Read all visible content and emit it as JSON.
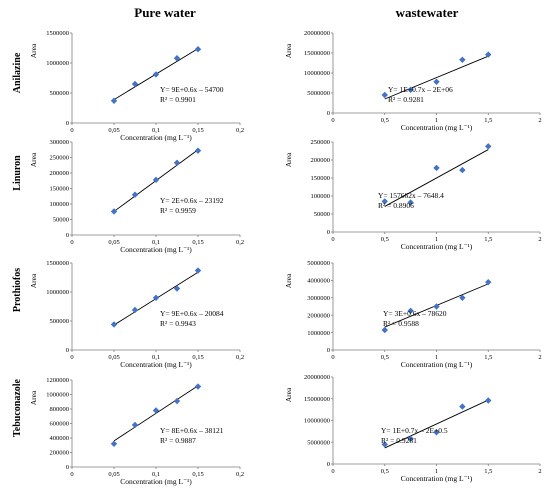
{
  "column_titles": [
    "Pure water",
    "wastewater"
  ],
  "row_titles": [
    "Anilazine",
    "Linuron",
    "Prothiofos",
    "Tebuconazole"
  ],
  "colors": {
    "marker": "#4472C4",
    "line": "#000000",
    "axis": "#7f7f7f"
  },
  "chart_data": [
    {
      "type": "scatter",
      "panel": "pure-anilazine",
      "ylabel": "Area",
      "xlabel": "Concentration (mg L⁻¹)",
      "xlim": [
        0,
        0.2
      ],
      "ylim": [
        0,
        1500000
      ],
      "xticks": [
        "0",
        "0,05",
        "0,1",
        "0,15",
        "0,2"
      ],
      "yticks": [
        "0",
        "500000",
        "1000000",
        "1500000"
      ],
      "x": [
        0.05,
        0.075,
        0.1,
        0.125,
        0.15
      ],
      "y": [
        370000,
        650000,
        810000,
        1080000,
        1230000
      ],
      "trend": {
        "x": [
          0.05,
          0.15
        ],
        "y": [
          390000,
          1240000
        ]
      },
      "equation": "Y= 9E+0.6x – 54700",
      "r2": "R² = 0.9901"
    },
    {
      "type": "scatter",
      "panel": "waste-anilazine",
      "ylabel": "Area",
      "xlabel": "Concentration (mg L⁻¹)",
      "xlim": [
        0,
        2
      ],
      "ylim": [
        0,
        20000000
      ],
      "xticks": [
        "0",
        "0,5",
        "1",
        "1,5",
        "2"
      ],
      "yticks": [
        "0",
        "5000000",
        "10000000",
        "15000000",
        "20000000"
      ],
      "x": [
        0.5,
        0.75,
        1.0,
        1.25,
        1.5
      ],
      "y": [
        4500000,
        5800000,
        7800000,
        13300000,
        14600000
      ],
      "trend": {
        "x": [
          0.5,
          1.5
        ],
        "y": [
          3500000,
          14200000
        ]
      },
      "equation": "Y= 1E+0.7x – 2E+06",
      "r2": "R² = 0.9281"
    },
    {
      "type": "scatter",
      "panel": "pure-linuron",
      "ylabel": "Area",
      "xlabel": "Concentration (mg L⁻¹)",
      "xlim": [
        0,
        0.2
      ],
      "ylim": [
        0,
        300000
      ],
      "xticks": [
        "0",
        "0,05",
        "0,1",
        "0,15",
        "0,2"
      ],
      "yticks": [
        "0",
        "50000",
        "100000",
        "150000",
        "200000",
        "250000",
        "300000"
      ],
      "x": [
        0.05,
        0.075,
        0.1,
        0.125,
        0.15
      ],
      "y": [
        76000,
        130000,
        178000,
        233000,
        272000
      ],
      "trend": {
        "x": [
          0.05,
          0.15
        ],
        "y": [
          76000,
          275000
        ]
      },
      "equation": "Y= 2E+0.6x – 23192",
      "r2": "R² = 0.9959"
    },
    {
      "type": "scatter",
      "panel": "waste-linuron",
      "ylabel": "Area",
      "xlabel": "Concentration (mg L⁻¹)",
      "xlim": [
        0,
        2
      ],
      "ylim": [
        0,
        250000
      ],
      "xticks": [
        "0",
        "0,5",
        "1",
        "1,5",
        "2"
      ],
      "yticks": [
        "0",
        "50000",
        "100000",
        "150000",
        "200000",
        "250000"
      ],
      "x": [
        0.5,
        0.75,
        1.0,
        1.25,
        1.5
      ],
      "y": [
        85000,
        82000,
        178000,
        172000,
        238000
      ],
      "trend": {
        "x": [
          0.5,
          1.5
        ],
        "y": [
          71000,
          229000
        ]
      },
      "equation": "Y= 157662x – 7648.4",
      "r2": "R² = 0.8906"
    },
    {
      "type": "scatter",
      "panel": "pure-prothiofos",
      "ylabel": "Area",
      "xlabel": "Concentration (mg L⁻¹)",
      "xlim": [
        0,
        0.2
      ],
      "ylim": [
        0,
        1500000
      ],
      "xticks": [
        "0",
        "0,05",
        "0,1",
        "0,15",
        "0,2"
      ],
      "yticks": [
        "0",
        "500000",
        "1000000",
        "1500000"
      ],
      "x": [
        0.05,
        0.075,
        0.1,
        0.125,
        0.15
      ],
      "y": [
        440000,
        690000,
        900000,
        1060000,
        1370000
      ],
      "trend": {
        "x": [
          0.05,
          0.15
        ],
        "y": [
          430000,
          1340000
        ]
      },
      "equation": "Y= 9E+0.6x – 20084",
      "r2": "R² = 0.9943"
    },
    {
      "type": "scatter",
      "panel": "waste-prothiofos",
      "ylabel": "Area",
      "xlabel": "Concentration (mg L⁻¹)",
      "xlim": [
        0,
        2
      ],
      "ylim": [
        0,
        5000000
      ],
      "xticks": [
        "0",
        "0,5",
        "1",
        "1,5",
        "2"
      ],
      "yticks": [
        "0",
        "1000000",
        "2000000",
        "3000000",
        "4000000",
        "5000000"
      ],
      "x": [
        0.5,
        0.75,
        1.0,
        1.25,
        1.5
      ],
      "y": [
        1150000,
        2250000,
        2500000,
        3000000,
        3900000
      ],
      "trend": {
        "x": [
          0.5,
          1.5
        ],
        "y": [
          1320000,
          3800000
        ]
      },
      "equation": "Y= 3E+0.6x – 78620",
      "r2": "R² = 0.9588"
    },
    {
      "type": "scatter",
      "panel": "pure-tebuconazole",
      "ylabel": "Area",
      "xlabel": "Concentration (mg L⁻¹)",
      "xlim": [
        0,
        0.2
      ],
      "ylim": [
        0,
        1200000
      ],
      "xticks": [
        "0",
        "0,05",
        "0,1",
        "0,15",
        "0,2"
      ],
      "yticks": [
        "0",
        "200000",
        "400000",
        "600000",
        "800000",
        "1000000",
        "1200000"
      ],
      "x": [
        0.05,
        0.075,
        0.1,
        0.125,
        0.15
      ],
      "y": [
        320000,
        580000,
        780000,
        910000,
        1110000
      ],
      "trend": {
        "x": [
          0.05,
          0.15
        ],
        "y": [
          360000,
          1120000
        ]
      },
      "equation": "Y= 8E+0.6x – 38121",
      "r2": "R² = 0.9887"
    },
    {
      "type": "scatter",
      "panel": "waste-tebuconazole",
      "ylabel": "Area",
      "xlabel": "Concentration (mg L⁻¹)",
      "xlim": [
        0,
        2
      ],
      "ylim": [
        0,
        20000000
      ],
      "xticks": [
        "0",
        "0,5",
        "1",
        "1,5",
        "2"
      ],
      "yticks": [
        "0",
        "5000000",
        "10000000",
        "15000000",
        "20000000"
      ],
      "x": [
        0.5,
        0.75,
        1.0,
        1.25,
        1.5
      ],
      "y": [
        4500000,
        5800000,
        7300000,
        13200000,
        14600000
      ],
      "trend": {
        "x": [
          0.5,
          1.5
        ],
        "y": [
          3700000,
          14700000
        ]
      },
      "equation": "Y= 1E+0.7x – 2E+0.5",
      "r2": "R² = 0.9281"
    }
  ]
}
